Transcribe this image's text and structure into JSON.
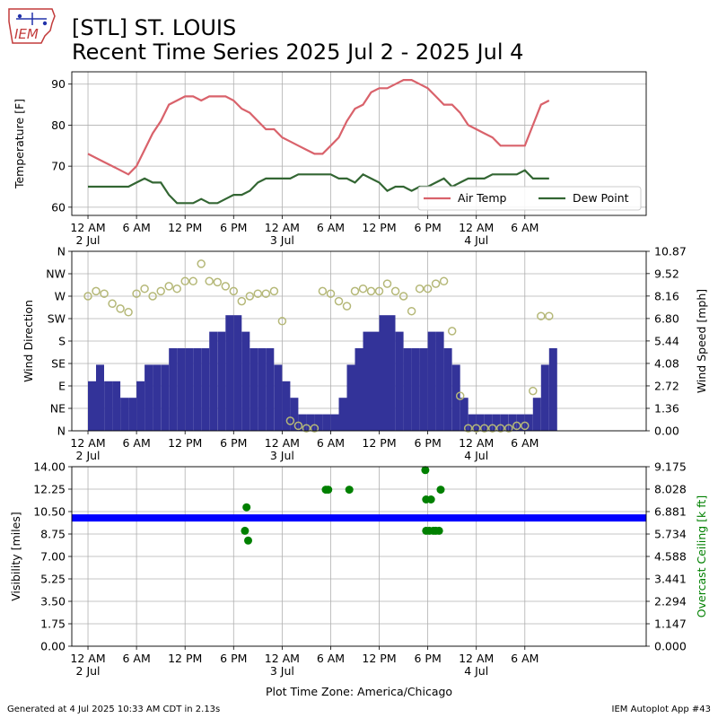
{
  "logo": {
    "name": "iem-logo-icon",
    "text": "IEM"
  },
  "title": {
    "line1": "[STL] ST. LOUIS",
    "line2": "Recent Time Series 2025 Jul 2 - 2025 Jul 4"
  },
  "footer": {
    "left": "Generated at 4 Jul 2025 10:33 AM CDT in 2.13s",
    "right": "IEM Autoplot App #43"
  },
  "x_axis": {
    "title": "Plot Time Zone: America/Chicago",
    "range_hours": [
      -2,
      69
    ],
    "ticks": [
      {
        "h": 0,
        "label": "12 AM",
        "sub": "2 Jul"
      },
      {
        "h": 6,
        "label": "6 AM",
        "sub": ""
      },
      {
        "h": 12,
        "label": "12 PM",
        "sub": ""
      },
      {
        "h": 18,
        "label": "6 PM",
        "sub": ""
      },
      {
        "h": 24,
        "label": "12 AM",
        "sub": "3 Jul"
      },
      {
        "h": 30,
        "label": "6 AM",
        "sub": ""
      },
      {
        "h": 36,
        "label": "12 PM",
        "sub": ""
      },
      {
        "h": 42,
        "label": "6 PM",
        "sub": ""
      },
      {
        "h": 48,
        "label": "12 AM",
        "sub": "4 Jul"
      },
      {
        "h": 54,
        "label": "6 AM",
        "sub": ""
      }
    ]
  },
  "chart_data": [
    {
      "type": "line",
      "ylabel": "Temperature [F]",
      "ylim": [
        58,
        93
      ],
      "yticks": [
        60,
        70,
        80,
        90
      ],
      "grid": true,
      "legend_position": "lower-right",
      "series": [
        {
          "name": "Air Temp",
          "color": "#d9626b",
          "points": [
            [
              0,
              73
            ],
            [
              1,
              72
            ],
            [
              2,
              71
            ],
            [
              3,
              70
            ],
            [
              4,
              69
            ],
            [
              5,
              68
            ],
            [
              6,
              70
            ],
            [
              7,
              74
            ],
            [
              8,
              78
            ],
            [
              9,
              81
            ],
            [
              10,
              85
            ],
            [
              11,
              86
            ],
            [
              12,
              87
            ],
            [
              13,
              87
            ],
            [
              14,
              86
            ],
            [
              15,
              87
            ],
            [
              16,
              87
            ],
            [
              17,
              87
            ],
            [
              18,
              86
            ],
            [
              19,
              84
            ],
            [
              20,
              83
            ],
            [
              21,
              81
            ],
            [
              22,
              79
            ],
            [
              23,
              79
            ],
            [
              24,
              77
            ],
            [
              25,
              76
            ],
            [
              26,
              75
            ],
            [
              27,
              74
            ],
            [
              28,
              73
            ],
            [
              29,
              73
            ],
            [
              30,
              75
            ],
            [
              31,
              77
            ],
            [
              32,
              81
            ],
            [
              33,
              84
            ],
            [
              34,
              85
            ],
            [
              35,
              88
            ],
            [
              36,
              89
            ],
            [
              37,
              89
            ],
            [
              38,
              90
            ],
            [
              39,
              91
            ],
            [
              40,
              91
            ],
            [
              41,
              90
            ],
            [
              42,
              89
            ],
            [
              43,
              87
            ],
            [
              44,
              85
            ],
            [
              45,
              85
            ],
            [
              46,
              83
            ],
            [
              47,
              80
            ],
            [
              48,
              79
            ],
            [
              49,
              78
            ],
            [
              50,
              77
            ],
            [
              51,
              75
            ],
            [
              52,
              75
            ],
            [
              53,
              75
            ],
            [
              54,
              75
            ],
            [
              55,
              80
            ],
            [
              56,
              85
            ],
            [
              57,
              86
            ]
          ]
        },
        {
          "name": "Dew Point",
          "color": "#336633",
          "points": [
            [
              0,
              65
            ],
            [
              1,
              65
            ],
            [
              2,
              65
            ],
            [
              3,
              65
            ],
            [
              4,
              65
            ],
            [
              5,
              65
            ],
            [
              6,
              66
            ],
            [
              7,
              67
            ],
            [
              8,
              66
            ],
            [
              9,
              66
            ],
            [
              10,
              63
            ],
            [
              11,
              61
            ],
            [
              12,
              61
            ],
            [
              13,
              61
            ],
            [
              14,
              62
            ],
            [
              15,
              61
            ],
            [
              16,
              61
            ],
            [
              17,
              62
            ],
            [
              18,
              63
            ],
            [
              19,
              63
            ],
            [
              20,
              64
            ],
            [
              21,
              66
            ],
            [
              22,
              67
            ],
            [
              23,
              67
            ],
            [
              24,
              67
            ],
            [
              25,
              67
            ],
            [
              26,
              68
            ],
            [
              27,
              68
            ],
            [
              28,
              68
            ],
            [
              29,
              68
            ],
            [
              30,
              68
            ],
            [
              31,
              67
            ],
            [
              32,
              67
            ],
            [
              33,
              66
            ],
            [
              34,
              68
            ],
            [
              35,
              67
            ],
            [
              36,
              66
            ],
            [
              37,
              64
            ],
            [
              38,
              65
            ],
            [
              39,
              65
            ],
            [
              40,
              64
            ],
            [
              41,
              65
            ],
            [
              42,
              65
            ],
            [
              43,
              66
            ],
            [
              44,
              67
            ],
            [
              45,
              65
            ],
            [
              46,
              66
            ],
            [
              47,
              67
            ],
            [
              48,
              67
            ],
            [
              49,
              67
            ],
            [
              50,
              68
            ],
            [
              51,
              68
            ],
            [
              52,
              68
            ],
            [
              53,
              68
            ],
            [
              54,
              69
            ],
            [
              55,
              67
            ],
            [
              56,
              67
            ],
            [
              57,
              67
            ]
          ]
        }
      ]
    },
    {
      "type": "bar",
      "ylabel": "Wind Direction",
      "y2label": "Wind Speed [mph]",
      "y_direction_ticks": [
        "N",
        "NE",
        "E",
        "SE",
        "S",
        "SW",
        "W",
        "NW",
        "N"
      ],
      "ylim_direction_deg": [
        0,
        360
      ],
      "y2ticks_mph": [
        0.0,
        1.36,
        2.72,
        4.08,
        5.44,
        6.8,
        8.16,
        9.52,
        10.87
      ],
      "ylim_speed_mph": [
        0,
        10.87
      ],
      "grid": true,
      "series": [
        {
          "name": "",
          "type": "bar",
          "color": "#333399",
          "hourly_speed_mph": [
            3,
            4,
            3,
            3,
            2,
            2,
            3,
            4,
            4,
            4,
            5,
            5,
            5,
            5,
            5,
            6,
            6,
            7,
            7,
            6,
            5,
            5,
            5,
            4,
            3,
            2,
            1,
            1,
            1,
            1,
            1,
            2,
            4,
            5,
            6,
            6,
            7,
            7,
            6,
            5,
            5,
            5,
            6,
            6,
            5,
            4,
            2,
            1,
            1,
            1,
            1,
            1,
            1,
            1,
            1,
            2,
            4,
            5
          ]
        },
        {
          "name": "",
          "type": "scatter",
          "color": "#b5b878",
          "hourly_direction_deg": [
            270,
            280,
            275,
            255,
            245,
            238,
            275,
            285,
            270,
            280,
            290,
            285,
            300,
            300,
            335,
            300,
            298,
            290,
            280,
            260,
            270,
            275,
            275,
            280,
            220,
            20,
            10,
            5,
            5,
            280,
            275,
            260,
            250,
            280,
            285,
            280,
            280,
            295,
            280,
            270,
            240,
            285,
            285,
            295,
            300,
            200,
            70,
            5,
            5,
            5,
            5,
            5,
            5,
            10,
            10,
            80,
            230,
            230
          ]
        }
      ]
    },
    {
      "type": "scatter",
      "ylabel": "Visibility [miles]",
      "y2label": "Overcast Ceiling [k ft]",
      "ylim_miles": [
        0,
        14
      ],
      "yticks_miles": [
        0.0,
        1.75,
        3.5,
        5.25,
        7.0,
        8.75,
        10.5,
        12.25,
        14.0
      ],
      "y2ticks_kft": [
        0.0,
        1.147,
        2.294,
        3.441,
        4.588,
        5.734,
        6.881,
        8.028,
        9.175
      ],
      "ylim_kft": [
        0,
        9.175
      ],
      "grid": true,
      "series": [
        {
          "name": "",
          "color": "#0000ff",
          "visibility_constant_miles": 10.0,
          "x_range_hours": [
            -2,
            69
          ]
        },
        {
          "name": "",
          "color": "#008000",
          "ceiling_points_kft": [
            [
              19.6,
              7.1
            ],
            [
              19.4,
              5.9
            ],
            [
              19.8,
              5.4
            ],
            [
              29.4,
              8.0
            ],
            [
              29.7,
              8.0
            ],
            [
              32.3,
              8.0
            ],
            [
              41.7,
              9.0
            ],
            [
              41.8,
              7.5
            ],
            [
              42.4,
              7.5
            ],
            [
              41.8,
              5.9
            ],
            [
              42.2,
              5.9
            ],
            [
              42.7,
              5.9
            ],
            [
              43.0,
              5.9
            ],
            [
              43.4,
              5.9
            ],
            [
              43.6,
              8.0
            ]
          ]
        }
      ]
    }
  ]
}
